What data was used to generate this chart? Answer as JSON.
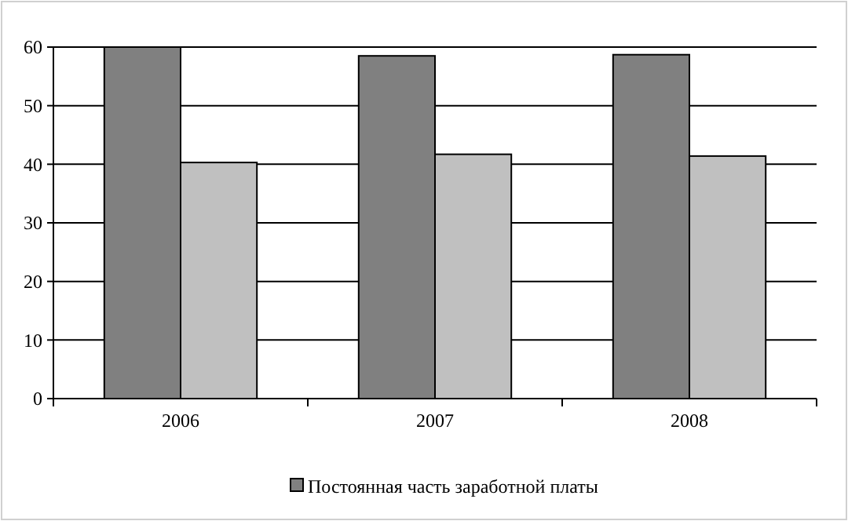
{
  "chart_data": {
    "type": "bar",
    "categories": [
      "2006",
      "2007",
      "2008"
    ],
    "series": [
      {
        "name": "Постоянная часть заработной платы",
        "color": "#808080",
        "values": [
          60,
          58.5,
          58.7
        ]
      },
      {
        "color": "#c0c0c0",
        "values": [
          40.3,
          41.7,
          41.4
        ]
      }
    ],
    "ylim": [
      0,
      60
    ],
    "yticks": [
      0,
      10,
      20,
      30,
      40,
      50,
      60
    ],
    "grid": "y",
    "legend": "bottom"
  }
}
